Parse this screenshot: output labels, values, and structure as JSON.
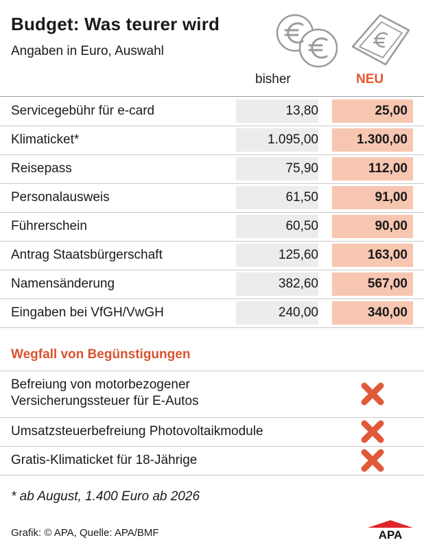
{
  "title": "Budget: Was teurer wird",
  "subtitle": "Angaben in Euro, Auswahl",
  "columns": {
    "old": "bisher",
    "new": "NEU"
  },
  "chart_data": {
    "type": "table",
    "columns": [
      "bisher",
      "NEU"
    ],
    "rows": [
      {
        "label": "Servicegebühr für e-card",
        "old": "13,80",
        "new": "25,00"
      },
      {
        "label": "Klimaticket*",
        "old": "1.095,00",
        "new": "1.300,00"
      },
      {
        "label": "Reisepass",
        "old": "75,90",
        "new": "112,00"
      },
      {
        "label": "Personalausweis",
        "old": "61,50",
        "new": "91,00"
      },
      {
        "label": "Führerschein",
        "old": "60,50",
        "new": "90,00"
      },
      {
        "label": "Antrag Staatsbürgerschaft",
        "old": "125,60",
        "new": "163,00"
      },
      {
        "label": "Namensänderung",
        "old": "382,60",
        "new": "567,00"
      },
      {
        "label": "Eingaben bei VfGH/VwGH",
        "old": "240,00",
        "new": "340,00"
      }
    ]
  },
  "wegfall": {
    "title": "Wegfall von Begünstigungen",
    "items": [
      {
        "line1": "Befreiung von motorbezogener",
        "line2": "Versicherungssteuer für E-Autos"
      },
      {
        "line1": "Umsatzsteuerbefreiung Photovoltaikmodule",
        "line2": ""
      },
      {
        "line1": "Gratis-Klimaticket für 18-Jährige",
        "line2": ""
      }
    ]
  },
  "footnote": "* ab August, 1.400 Euro ab 2026",
  "source": "Grafik: © APA, Quelle: APA/BMF",
  "logo": "APA",
  "colors": {
    "accent": "#e8562e",
    "new_cell": "#f7c6b1",
    "old_cell": "#ececec",
    "cross": "#e05a3a"
  }
}
